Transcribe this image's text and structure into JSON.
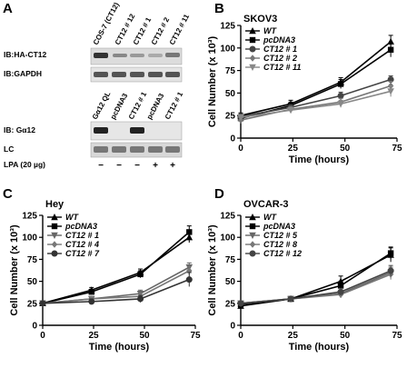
{
  "panel_a": {
    "label": "A",
    "top_lanes": [
      "COS-7 (CT12)",
      "CT12 # 12",
      "CT12 # 1",
      "CT12 # 2",
      "CT12 # 11"
    ],
    "blot1": "IB:HA-CT12",
    "blot2": "IB:GAPDH",
    "bottom_lanes": [
      "Gα12 QL",
      "pcDNA3",
      "CT12 # 1",
      "pcDNA3",
      "CT12 # 1"
    ],
    "blot3": "IB: Gα12",
    "blot4": "LC",
    "lpa_label": "LPA (20 µg)",
    "lpa_signs": [
      "−",
      "−",
      "−",
      "+",
      "+"
    ]
  },
  "chart_data": [
    {
      "panel": "B",
      "type": "line",
      "title": "SKOV3",
      "xlabel": "Time (hours)",
      "ylabel": "Cell Number (x 10³)",
      "xlim": [
        0,
        75
      ],
      "ylim": [
        0,
        125
      ],
      "xticks": [
        "0",
        "25",
        "50",
        "75"
      ],
      "yticks": [
        "0",
        "25",
        "50",
        "75",
        "100",
        "125"
      ],
      "x": [
        0,
        24,
        48,
        72
      ],
      "series": [
        {
          "name": "WT",
          "values": [
            25,
            38,
            62,
            107
          ],
          "err": [
            3,
            4,
            5,
            7
          ],
          "marker": "triangle",
          "color": "#000000"
        },
        {
          "name": "pcDNA3",
          "values": [
            22,
            36,
            60,
            98
          ],
          "err": [
            3,
            4,
            5,
            8
          ],
          "marker": "square",
          "color": "#000000"
        },
        {
          "name": "CT12 # 1",
          "values": [
            24,
            34,
            47,
            65
          ],
          "err": [
            3,
            3,
            4,
            4
          ],
          "marker": "circle",
          "color": "#444444"
        },
        {
          "name": "CT12 # 2",
          "values": [
            20,
            32,
            40,
            58
          ],
          "err": [
            3,
            3,
            4,
            5
          ],
          "marker": "diamond",
          "color": "#777777"
        },
        {
          "name": "CT12 # 11",
          "values": [
            23,
            31,
            38,
            52
          ],
          "err": [
            3,
            3,
            4,
            6
          ],
          "marker": "triangle-down",
          "color": "#888888"
        }
      ]
    },
    {
      "panel": "C",
      "type": "line",
      "title": "Hey",
      "xlabel": "Time (hours)",
      "ylabel": "Cell Number (x 10³)",
      "xlim": [
        0,
        75
      ],
      "ylim": [
        0,
        125
      ],
      "xticks": [
        "0",
        "25",
        "50",
        "75"
      ],
      "yticks": [
        "0",
        "25",
        "50",
        "75",
        "100",
        "125"
      ],
      "x": [
        0,
        24,
        48,
        72
      ],
      "series": [
        {
          "name": "WT",
          "values": [
            25,
            40,
            60,
            100
          ],
          "err": [
            2,
            3,
            4,
            6
          ],
          "marker": "triangle",
          "color": "#000000"
        },
        {
          "name": "pcDNA3",
          "values": [
            25,
            38,
            58,
            106
          ],
          "err": [
            2,
            3,
            4,
            7
          ],
          "marker": "square",
          "color": "#000000"
        },
        {
          "name": "CT12 # 1",
          "values": [
            25,
            30,
            36,
            66
          ],
          "err": [
            2,
            3,
            4,
            5
          ],
          "marker": "triangle-down",
          "color": "#666666"
        },
        {
          "name": "CT12 # 4",
          "values": [
            25,
            30,
            33,
            62
          ],
          "err": [
            2,
            3,
            4,
            5
          ],
          "marker": "diamond",
          "color": "#777777"
        },
        {
          "name": "CT12 # 7",
          "values": [
            25,
            27,
            30,
            52
          ],
          "err": [
            2,
            3,
            4,
            8
          ],
          "marker": "circle",
          "color": "#333333"
        }
      ]
    },
    {
      "panel": "D",
      "type": "line",
      "title": "OVCAR-3",
      "xlabel": "Time (hours)",
      "ylabel": "Cell Number (x 10³)",
      "xlim": [
        0,
        75
      ],
      "ylim": [
        0,
        125
      ],
      "xticks": [
        "0",
        "25",
        "50",
        "75"
      ],
      "yticks": [
        "0",
        "25",
        "50",
        "75",
        "100",
        "125"
      ],
      "x": [
        0,
        24,
        48,
        72
      ],
      "series": [
        {
          "name": "WT",
          "values": [
            22,
            30,
            50,
            80
          ],
          "err": [
            2,
            2,
            6,
            8
          ],
          "marker": "triangle",
          "color": "#000000"
        },
        {
          "name": "pcDNA3",
          "values": [
            24,
            30,
            45,
            82
          ],
          "err": [
            2,
            2,
            5,
            7
          ],
          "marker": "square",
          "color": "#000000"
        },
        {
          "name": "CT12 # 5",
          "values": [
            25,
            30,
            36,
            60
          ],
          "err": [
            2,
            2,
            4,
            6
          ],
          "marker": "triangle-down",
          "color": "#666666"
        },
        {
          "name": "CT12 # 8",
          "values": [
            25,
            30,
            35,
            58
          ],
          "err": [
            2,
            2,
            4,
            6
          ],
          "marker": "diamond",
          "color": "#777777"
        },
        {
          "name": "CT12 # 12",
          "values": [
            25,
            30,
            38,
            62
          ],
          "err": [
            2,
            2,
            4,
            6
          ],
          "marker": "circle",
          "color": "#444444"
        }
      ]
    }
  ]
}
